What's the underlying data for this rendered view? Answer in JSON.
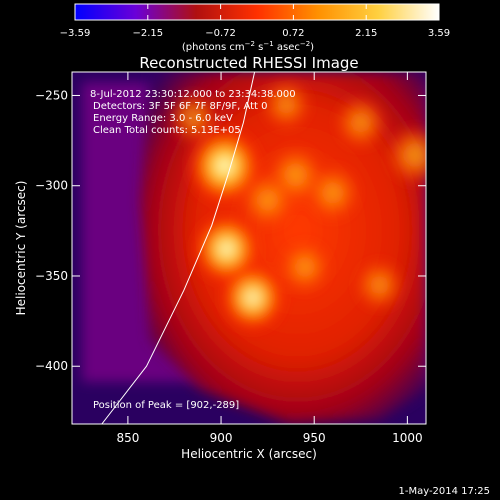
{
  "colorbar": {
    "ticks": [
      "−3.59",
      "−2.15",
      "−0.72",
      "0.72",
      "2.15",
      "3.59"
    ],
    "units_main": "(photons cm",
    "units_exp1": "−2",
    "units_mid": " s",
    "units_exp2": "−1",
    "units_tail": " asec",
    "units_exp3": "−2",
    "units_close": ")",
    "stops": [
      "#0000ff",
      "#6a00d8",
      "#b01010",
      "#ff3000",
      "#ff9000",
      "#ffd040",
      "#ffffff"
    ]
  },
  "chart_data": {
    "type": "heatmap",
    "title": "Reconstructed RHESSI Image",
    "xlabel": "Heliocentric X (arcsec)",
    "ylabel": "Heliocentric Y (arcsec)",
    "xlim": [
      820,
      1010
    ],
    "ylim": [
      -432,
      -237
    ],
    "x_ticks": [
      850,
      900,
      950,
      1000
    ],
    "y_ticks": [
      -250,
      -300,
      -350,
      -400
    ],
    "x_tick_labels": [
      "850",
      "900",
      "950",
      "1000"
    ],
    "y_tick_labels": [
      "−250",
      "−300",
      "−350",
      "−400"
    ],
    "annotations": {
      "time": "8-Jul-2012 23:30:12.000 to 23:34:38.000",
      "detectors": "Detectors: 3F 5F 6F 7F 8F/9F, Att 0",
      "energy": "Energy Range: 3.0 - 6.0 keV",
      "clean": "Clean    Total counts: 5.13E+05",
      "peak": "Position of Peak = [902,-289]"
    },
    "peak": [
      902,
      -289
    ],
    "sources": [
      {
        "x": 902,
        "y": -289,
        "level": 1.0
      },
      {
        "x": 903,
        "y": -335,
        "level": 0.85
      },
      {
        "x": 917,
        "y": -362,
        "level": 0.8
      },
      {
        "x": 940,
        "y": -294,
        "level": 0.6
      },
      {
        "x": 925,
        "y": -308,
        "level": 0.55
      },
      {
        "x": 960,
        "y": -304,
        "level": 0.55
      },
      {
        "x": 1004,
        "y": -283,
        "level": 0.62
      },
      {
        "x": 975,
        "y": -265,
        "level": 0.5
      },
      {
        "x": 885,
        "y": -262,
        "level": 0.45
      },
      {
        "x": 935,
        "y": -255,
        "level": 0.45
      },
      {
        "x": 945,
        "y": -345,
        "level": 0.5
      },
      {
        "x": 985,
        "y": -355,
        "level": 0.45
      }
    ],
    "limb_curve": [
      [
        836,
        -432
      ],
      [
        860,
        -400
      ],
      [
        880,
        -358
      ],
      [
        895,
        -322
      ],
      [
        904,
        -293
      ],
      [
        912,
        -265
      ],
      [
        918,
        -237
      ]
    ]
  },
  "footer": {
    "date": "1-May-2014 17:25"
  }
}
